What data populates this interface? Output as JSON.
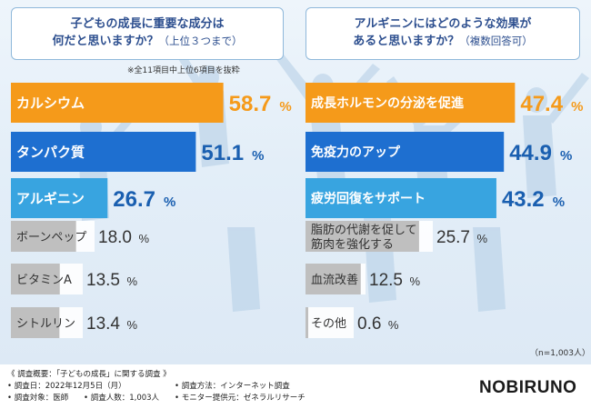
{
  "colors": {
    "orange": "#f59a1a",
    "blue": "#1e6fd0",
    "light_blue": "#38a4e0",
    "gray": "#bfbfbf",
    "value_orange": "#f59a1a",
    "value_blue": "#1a5fb0",
    "value_gray": "#333333"
  },
  "left_header": {
    "line1": "子どもの成長に重要な成分は",
    "line2": "何だと思いますか？",
    "line2_sub": "（上位３つまで）"
  },
  "left_note": "※全11項目中上位6項目を抜粋",
  "right_header": {
    "line1": "アルギニンにはどのような効果が",
    "line2": "あると思いますか？",
    "line2_sub": "（複数回答可）"
  },
  "n_note": "（n=1,003人）",
  "chart_data": [
    {
      "type": "bar",
      "orientation": "horizontal",
      "title": "子どもの成長に重要な成分は何だと思いますか？（上位３つまで）",
      "unit": "%",
      "categories": [
        "カルシウム",
        "タンパク質",
        "アルギニン",
        "ボーンペップ",
        "ビタミンA",
        "シトルリン"
      ],
      "values": [
        58.7,
        51.1,
        26.7,
        18.0,
        13.5,
        13.4
      ],
      "labels": [
        "58.7",
        "51.1",
        "26.7",
        "18.0",
        "13.5",
        "13.4"
      ],
      "styles": [
        "orange",
        "blue",
        "light_blue",
        "gray",
        "gray",
        "gray"
      ]
    },
    {
      "type": "bar",
      "orientation": "horizontal",
      "title": "アルギニンにはどのような効果があると思いますか？（複数回答可）",
      "unit": "%",
      "categories": [
        [
          "成長ホルモンの分泌を促進"
        ],
        [
          "免疫力のアップ"
        ],
        [
          "疲労回復をサポート"
        ],
        [
          "脂肪の代謝を促して",
          "筋肉を強化する"
        ],
        [
          "血流改善"
        ],
        [
          "その他"
        ]
      ],
      "values": [
        47.4,
        44.9,
        43.2,
        25.7,
        12.5,
        0.6
      ],
      "labels": [
        "47.4",
        "44.9",
        "43.2",
        "25.7",
        "12.5",
        "0.6"
      ],
      "styles": [
        "orange",
        "blue",
        "light_blue",
        "gray",
        "gray",
        "gray"
      ]
    }
  ],
  "footer": {
    "title": "《 調査概要：「子どもの成長」に関する調査 》",
    "date": "• 調査日：2022年12月5日（月）",
    "target": "• 調査対象：医師",
    "count": "• 調査人数：1,003人",
    "method": "• 調査方法：インターネット調査",
    "provider": "• モニター提供元：ゼネラルリサーチ"
  },
  "logo": "NOBIRUNO"
}
